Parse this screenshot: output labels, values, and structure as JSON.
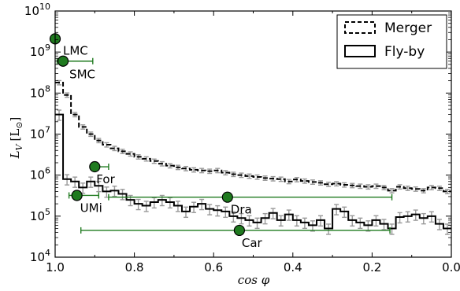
{
  "chart_data": {
    "type": "line",
    "xlabel": "cos φ",
    "ylabel": "L_V [L_⊙]",
    "ylabel_main": "L",
    "ylabel_sub": "V",
    "ylabel_unit": "[L",
    "ylabel_unit_sub": "⊙",
    "ylabel_unit_close": "]",
    "xlim": [
      1.0,
      0.0
    ],
    "ylim": [
      10000,
      10000000000
    ],
    "yscale": "log",
    "x_ticks": [
      1.0,
      0.8,
      0.6,
      0.4,
      0.2,
      0.0
    ],
    "x_tick_labels": [
      "1.0",
      "0.8",
      "0.6",
      "0.4",
      "0.2",
      "0.0"
    ],
    "y_tick_exponents": [
      4,
      5,
      6,
      7,
      8,
      9,
      10
    ],
    "y_tick_base": "10",
    "legend_position": "top-right",
    "series": [
      {
        "name": "Merger",
        "style": "dashed",
        "color": "#000000",
        "x": [
          1.0,
          0.98,
          0.96,
          0.94,
          0.92,
          0.9,
          0.88,
          0.86,
          0.84,
          0.82,
          0.8,
          0.78,
          0.76,
          0.74,
          0.72,
          0.7,
          0.68,
          0.66,
          0.64,
          0.62,
          0.6,
          0.58,
          0.56,
          0.54,
          0.52,
          0.5,
          0.48,
          0.46,
          0.44,
          0.42,
          0.4,
          0.38,
          0.36,
          0.34,
          0.32,
          0.3,
          0.28,
          0.26,
          0.24,
          0.22,
          0.2,
          0.18,
          0.16,
          0.14,
          0.12,
          0.1,
          0.08,
          0.06,
          0.04,
          0.02
        ],
        "values": [
          180000000,
          90000000,
          30000000,
          15000000,
          10000000,
          7000000,
          5500000,
          4500000,
          3800000,
          3300000,
          2800000,
          2500000,
          2200000,
          1900000,
          1700000,
          1550000,
          1450000,
          1350000,
          1300000,
          1250000,
          1300000,
          1150000,
          1050000,
          1000000,
          950000,
          900000,
          850000,
          820000,
          800000,
          700000,
          780000,
          720000,
          680000,
          650000,
          600000,
          620000,
          580000,
          560000,
          540000,
          520000,
          540000,
          500000,
          420000,
          520000,
          480000,
          460000,
          420000,
          500000,
          480000,
          400000
        ]
      },
      {
        "name": "Fly-by",
        "style": "solid",
        "color": "#000000",
        "x": [
          1.0,
          0.98,
          0.96,
          0.94,
          0.92,
          0.9,
          0.88,
          0.86,
          0.84,
          0.82,
          0.8,
          0.78,
          0.76,
          0.74,
          0.72,
          0.7,
          0.68,
          0.66,
          0.64,
          0.62,
          0.6,
          0.58,
          0.56,
          0.54,
          0.52,
          0.5,
          0.48,
          0.46,
          0.44,
          0.42,
          0.4,
          0.38,
          0.36,
          0.34,
          0.32,
          0.3,
          0.28,
          0.26,
          0.24,
          0.22,
          0.2,
          0.18,
          0.16,
          0.14,
          0.12,
          0.1,
          0.08,
          0.06,
          0.04,
          0.02
        ],
        "values": [
          30000000,
          800000,
          700000,
          500000,
          700000,
          550000,
          400000,
          420000,
          350000,
          250000,
          200000,
          180000,
          220000,
          250000,
          220000,
          180000,
          130000,
          170000,
          200000,
          150000,
          140000,
          130000,
          100000,
          90000,
          80000,
          70000,
          90000,
          120000,
          80000,
          110000,
          80000,
          70000,
          60000,
          80000,
          50000,
          150000,
          130000,
          80000,
          70000,
          60000,
          80000,
          65000,
          50000,
          95000,
          100000,
          110000,
          90000,
          100000,
          65000,
          50000
        ]
      }
    ],
    "galaxies": [
      {
        "name": "LMC",
        "x": 1.0,
        "y": 2100000000,
        "xerr": [
          1.0,
          1.0
        ]
      },
      {
        "name": "SMC",
        "x": 0.98,
        "y": 600000000,
        "xerr": [
          0.995,
          0.905
        ]
      },
      {
        "name": "For",
        "x": 0.9,
        "y": 1600000,
        "xerr": [
          0.905,
          0.865
        ]
      },
      {
        "name": "UMi",
        "x": 0.945,
        "y": 320000,
        "xerr": [
          0.965,
          0.89
        ]
      },
      {
        "name": "Dra",
        "x": 0.565,
        "y": 290000,
        "xerr": [
          0.865,
          0.15
        ]
      },
      {
        "name": "Car",
        "x": 0.535,
        "y": 45000,
        "xerr": [
          0.935,
          0.155
        ]
      }
    ],
    "galaxy_color": "#1f7a1f",
    "errorbar_color": "#999999"
  }
}
